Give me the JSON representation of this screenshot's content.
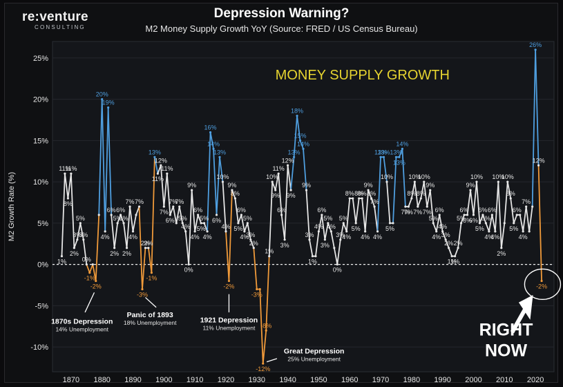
{
  "header": {
    "logo_text": "re:venture",
    "logo_sub": "CONSULTING",
    "title": "Depression Warning?",
    "subtitle": "M2 Money Supply Growth YoY  (Source: FRED / US Census Bureau)"
  },
  "chart_data": {
    "type": "line",
    "title": "Depression Warning?",
    "subtitle": "M2 Money Supply Growth YoY  (Source: FRED / US Census Bureau)",
    "ylabel": "M2 Growth Rate (%)",
    "xlabel": "",
    "overlay_text": "MONEY SUPPLY GROWTH",
    "ylim": [
      -13,
      27
    ],
    "xlim": [
      1864,
      2026
    ],
    "y_ticks": [
      "25%",
      "20%",
      "15%",
      "10%",
      "5%",
      "0%",
      "-5%",
      "-10%"
    ],
    "x_ticks": [
      "1870",
      "1880",
      "1890",
      "1900",
      "1910",
      "1920",
      "1930",
      "1940",
      "1950",
      "1960",
      "1970",
      "1980",
      "1990",
      "2000",
      "2010",
      "2020"
    ],
    "zero_line": "dashed",
    "colors": {
      "positive_line": "#e6e6e6",
      "peak_label": "#4f9fe0",
      "negative": "#f09a3a",
      "annotation": "#ffffff",
      "highlight_text": "#e6d430"
    },
    "series": [
      {
        "values": [
          [
            1867,
            1
          ],
          [
            1868,
            11
          ],
          [
            1869,
            8
          ],
          [
            1870,
            11
          ],
          [
            1871,
            2
          ],
          [
            1872,
            3
          ],
          [
            1873,
            5
          ],
          [
            1874,
            3
          ],
          [
            1875,
            0
          ],
          [
            1876,
            -1
          ],
          [
            1877,
            0
          ],
          [
            1878,
            -2
          ],
          [
            1879,
            6
          ],
          [
            1880,
            20
          ],
          [
            1881,
            4
          ],
          [
            1882,
            19
          ],
          [
            1883,
            6
          ],
          [
            1884,
            2
          ],
          [
            1885,
            5
          ],
          [
            1886,
            6
          ],
          [
            1887,
            5
          ],
          [
            1888,
            2
          ],
          [
            1889,
            7
          ],
          [
            1890,
            4
          ],
          [
            1891,
            6
          ],
          [
            1892,
            7
          ],
          [
            1893,
            -3
          ],
          [
            1894,
            2
          ],
          [
            1895,
            2
          ],
          [
            1896,
            -1
          ],
          [
            1897,
            13
          ],
          [
            1898,
            11
          ],
          [
            1899,
            12
          ],
          [
            1900,
            7
          ],
          [
            1901,
            11
          ],
          [
            1902,
            6
          ],
          [
            1903,
            7
          ],
          [
            1904,
            5
          ],
          [
            1905,
            7
          ],
          [
            1906,
            5
          ],
          [
            1907,
            4
          ],
          [
            1908,
            0
          ],
          [
            1909,
            9
          ],
          [
            1910,
            4
          ],
          [
            1911,
            6
          ],
          [
            1912,
            5
          ],
          [
            1913,
            5
          ],
          [
            1914,
            4
          ],
          [
            1915,
            16
          ],
          [
            1916,
            14
          ],
          [
            1917,
            6
          ],
          [
            1918,
            13
          ],
          [
            1919,
            10
          ],
          [
            1920,
            4
          ],
          [
            1921,
            -2
          ],
          [
            1922,
            9
          ],
          [
            1923,
            8
          ],
          [
            1924,
            5
          ],
          [
            1925,
            6
          ],
          [
            1926,
            4
          ],
          [
            1927,
            5
          ],
          [
            1928,
            3
          ],
          [
            1929,
            2
          ],
          [
            1930,
            -3
          ],
          [
            1931,
            -3
          ],
          [
            1932,
            -12
          ],
          [
            1933,
            -8
          ],
          [
            1934,
            1
          ],
          [
            1935,
            10
          ],
          [
            1936,
            9
          ],
          [
            1937,
            11
          ],
          [
            1938,
            6
          ],
          [
            1939,
            3
          ],
          [
            1940,
            12
          ],
          [
            1941,
            9
          ],
          [
            1942,
            13
          ],
          [
            1943,
            18
          ],
          [
            1944,
            15
          ],
          [
            1945,
            14
          ],
          [
            1946,
            9
          ],
          [
            1947,
            3
          ],
          [
            1948,
            1
          ],
          [
            1949,
            1
          ],
          [
            1950,
            4
          ],
          [
            1951,
            6
          ],
          [
            1952,
            3
          ],
          [
            1953,
            5
          ],
          [
            1954,
            4
          ],
          [
            1955,
            2
          ],
          [
            1956,
            0
          ],
          [
            1957,
            3
          ],
          [
            1958,
            5
          ],
          [
            1959,
            4
          ],
          [
            1960,
            8
          ],
          [
            1961,
            8
          ],
          [
            1962,
            5
          ],
          [
            1963,
            8
          ],
          [
            1964,
            8
          ],
          [
            1965,
            4
          ],
          [
            1966,
            9
          ],
          [
            1967,
            8
          ],
          [
            1968,
            7
          ],
          [
            1969,
            4
          ],
          [
            1970,
            13
          ],
          [
            1971,
            13
          ],
          [
            1972,
            10
          ],
          [
            1973,
            5
          ],
          [
            1974,
            5
          ],
          [
            1975,
            13
          ],
          [
            1976,
            13
          ],
          [
            1977,
            14
          ],
          [
            1978,
            7
          ],
          [
            1979,
            7
          ],
          [
            1980,
            8
          ],
          [
            1981,
            10
          ],
          [
            1982,
            7
          ],
          [
            1983,
            8
          ],
          [
            1984,
            10
          ],
          [
            1985,
            7
          ],
          [
            1986,
            9
          ],
          [
            1987,
            5
          ],
          [
            1988,
            4
          ],
          [
            1989,
            6
          ],
          [
            1990,
            4
          ],
          [
            1991,
            3
          ],
          [
            1992,
            2
          ],
          [
            1993,
            1
          ],
          [
            1994,
            1
          ],
          [
            1995,
            2
          ],
          [
            1996,
            5
          ],
          [
            1997,
            6
          ],
          [
            1998,
            6
          ],
          [
            1999,
            9
          ],
          [
            2000,
            6
          ],
          [
            2001,
            10
          ],
          [
            2002,
            5
          ],
          [
            2003,
            6
          ],
          [
            2004,
            5
          ],
          [
            2005,
            4
          ],
          [
            2006,
            6
          ],
          [
            2007,
            4
          ],
          [
            2008,
            10
          ],
          [
            2009,
            2
          ],
          [
            2010,
            5
          ],
          [
            2011,
            10
          ],
          [
            2012,
            8
          ],
          [
            2013,
            5
          ],
          [
            2014,
            6
          ],
          [
            2015,
            6
          ],
          [
            2016,
            4
          ],
          [
            2017,
            7
          ],
          [
            2018,
            4
          ],
          [
            2019,
            7
          ],
          [
            2020,
            26
          ],
          [
            2021,
            12
          ],
          [
            2022,
            -2
          ]
        ]
      }
    ],
    "point_labels": [
      [
        1867,
        "1%"
      ],
      [
        1868,
        "11%"
      ],
      [
        1869,
        "8%"
      ],
      [
        1870,
        "11%"
      ],
      [
        1871,
        "2%"
      ],
      [
        1872,
        "3%"
      ],
      [
        1873,
        "5%"
      ],
      [
        1874,
        "3%"
      ],
      [
        1875,
        "0%"
      ],
      [
        1876,
        "-1%"
      ],
      [
        1878,
        "-2%"
      ],
      [
        1880,
        "20%"
      ],
      [
        1881,
        "4%"
      ],
      [
        1882,
        "19%"
      ],
      [
        1883,
        "6%"
      ],
      [
        1884,
        "2%"
      ],
      [
        1885,
        "5%"
      ],
      [
        1886,
        "6%"
      ],
      [
        1887,
        "5%"
      ],
      [
        1888,
        "2%"
      ],
      [
        1889,
        "7%"
      ],
      [
        1890,
        "4%"
      ],
      [
        1892,
        "7%"
      ],
      [
        1893,
        "-3%"
      ],
      [
        1894,
        "2%"
      ],
      [
        1895,
        "2%"
      ],
      [
        1896,
        "-1%"
      ],
      [
        1897,
        "13%"
      ],
      [
        1898,
        "11%"
      ],
      [
        1899,
        "12%"
      ],
      [
        1900,
        "7%"
      ],
      [
        1901,
        "11%"
      ],
      [
        1902,
        "6%"
      ],
      [
        1903,
        "7%"
      ],
      [
        1905,
        "7%"
      ],
      [
        1906,
        "5%"
      ],
      [
        1907,
        "4%"
      ],
      [
        1908,
        "0%"
      ],
      [
        1909,
        "9%"
      ],
      [
        1910,
        "4%"
      ],
      [
        1911,
        "6%"
      ],
      [
        1912,
        "5%"
      ],
      [
        1913,
        "5%"
      ],
      [
        1914,
        "4%"
      ],
      [
        1915,
        "16%"
      ],
      [
        1916,
        "14%"
      ],
      [
        1917,
        "6%"
      ],
      [
        1918,
        "13%"
      ],
      [
        1919,
        "10%"
      ],
      [
        1920,
        "4%"
      ],
      [
        1921,
        "-2%"
      ],
      [
        1922,
        "9%"
      ],
      [
        1923,
        "8%"
      ],
      [
        1924,
        "5%"
      ],
      [
        1925,
        "6%"
      ],
      [
        1926,
        "4%"
      ],
      [
        1927,
        "5%"
      ],
      [
        1928,
        "3%"
      ],
      [
        1929,
        "2%"
      ],
      [
        1930,
        "-3%"
      ],
      [
        1932,
        "-12%"
      ],
      [
        1933,
        "-8%"
      ],
      [
        1934,
        "1%"
      ],
      [
        1935,
        "10%"
      ],
      [
        1936,
        "9%"
      ],
      [
        1937,
        "11%"
      ],
      [
        1938,
        "6%"
      ],
      [
        1939,
        "3%"
      ],
      [
        1940,
        "12%"
      ],
      [
        1941,
        "9%"
      ],
      [
        1942,
        "13%"
      ],
      [
        1943,
        "18%"
      ],
      [
        1944,
        "15%"
      ],
      [
        1945,
        "14%"
      ],
      [
        1946,
        "9%"
      ],
      [
        1947,
        "3%"
      ],
      [
        1948,
        "1%"
      ],
      [
        1950,
        "4%"
      ],
      [
        1951,
        "6%"
      ],
      [
        1952,
        "3%"
      ],
      [
        1953,
        "5%"
      ],
      [
        1954,
        "4%"
      ],
      [
        1956,
        "0%"
      ],
      [
        1957,
        "3%"
      ],
      [
        1958,
        "5%"
      ],
      [
        1959,
        "4%"
      ],
      [
        1960,
        "8%"
      ],
      [
        1962,
        "5%"
      ],
      [
        1963,
        "8%"
      ],
      [
        1964,
        "8%"
      ],
      [
        1965,
        "4%"
      ],
      [
        1966,
        "9%"
      ],
      [
        1967,
        "8%"
      ],
      [
        1968,
        "7%"
      ],
      [
        1969,
        "4%"
      ],
      [
        1970,
        "13%"
      ],
      [
        1971,
        "13%"
      ],
      [
        1972,
        "10%"
      ],
      [
        1973,
        "5%"
      ],
      [
        1975,
        "13%"
      ],
      [
        1976,
        "13%"
      ],
      [
        1977,
        "14%"
      ],
      [
        1978,
        "7%"
      ],
      [
        1979,
        "7%"
      ],
      [
        1980,
        "8%"
      ],
      [
        1981,
        "10%"
      ],
      [
        1982,
        "7%"
      ],
      [
        1983,
        "8%"
      ],
      [
        1984,
        "10%"
      ],
      [
        1985,
        "7%"
      ],
      [
        1986,
        "9%"
      ],
      [
        1987,
        "5%"
      ],
      [
        1988,
        "4%"
      ],
      [
        1989,
        "6%"
      ],
      [
        1990,
        "4%"
      ],
      [
        1991,
        "3%"
      ],
      [
        1992,
        "2%"
      ],
      [
        1993,
        "1%"
      ],
      [
        1994,
        "1%"
      ],
      [
        1995,
        "2%"
      ],
      [
        1996,
        "5%"
      ],
      [
        1997,
        "6%"
      ],
      [
        1998,
        "6%"
      ],
      [
        1999,
        "9%"
      ],
      [
        2000,
        "6%"
      ],
      [
        2001,
        "10%"
      ],
      [
        2002,
        "5%"
      ],
      [
        2003,
        "6%"
      ],
      [
        2004,
        "5%"
      ],
      [
        2005,
        "4%"
      ],
      [
        2006,
        "6%"
      ],
      [
        2007,
        "4%"
      ],
      [
        2008,
        "10%"
      ],
      [
        2009,
        "2%"
      ],
      [
        2011,
        "10%"
      ],
      [
        2012,
        "8%"
      ],
      [
        2013,
        "5%"
      ],
      [
        2014,
        "6%"
      ],
      [
        2016,
        "4%"
      ],
      [
        2017,
        "7%"
      ],
      [
        2020,
        "26%"
      ],
      [
        2021,
        "12%"
      ],
      [
        2022,
        "-2%"
      ]
    ],
    "annotations": [
      {
        "year": 1878,
        "title": "1870s Depression",
        "subtitle": "14% Unemployment"
      },
      {
        "year": 1893,
        "title": "Panic of 1893",
        "subtitle": "18% Unemployment"
      },
      {
        "year": 1921,
        "title": "1921 Depression",
        "subtitle": "11% Unemployment"
      },
      {
        "year": 1932,
        "title": "Great Depression",
        "subtitle": "25% Unemployment"
      }
    ],
    "callout": {
      "line1": "RIGHT",
      "line2": "NOW"
    }
  }
}
